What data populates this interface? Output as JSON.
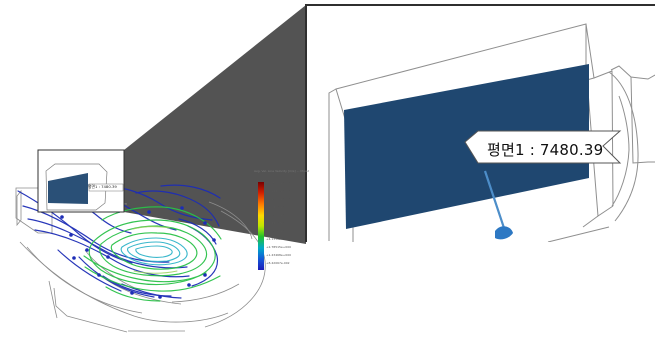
{
  "window": {
    "title": ""
  },
  "callout": {
    "measurement_text": "평면1 : 7480.39"
  },
  "mini_callout": {
    "measurement_text": "평면1 : 7480.39"
  },
  "legend": {
    "title": "Avg. Vel. Line\nVelocity [m/s] ... Mixed",
    "labels": [
      "+1.35889e+001",
      "+1.22385e+001",
      "+1.08880e+001",
      "+9.53752e+000",
      "+8.18704e+000",
      "+6.83657e+000",
      "+5.48610e+000",
      "+4.13562e+000",
      "+2.78515e+000",
      "+1.43468e+000",
      "+8.42067e-002"
    ]
  },
  "colors": {
    "plane_fill": "#1f4770",
    "stream_blue": "#1d2db6",
    "stream_green": "#3fc53b",
    "stream_teal": "#30b4c9",
    "border": "#2f2f2f",
    "projection_shadow": "#4a4a4a"
  }
}
